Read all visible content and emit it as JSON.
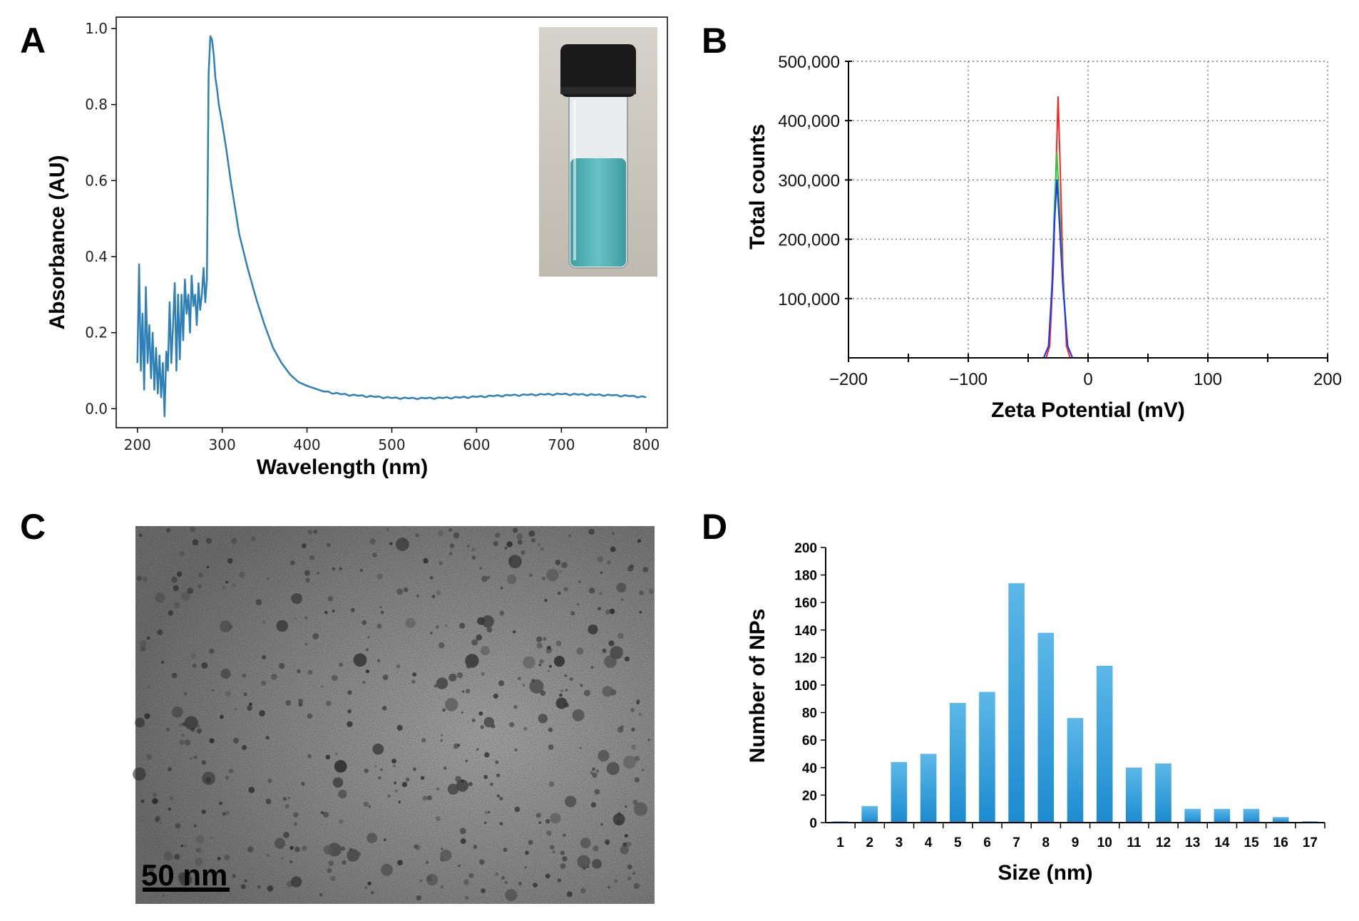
{
  "panels": {
    "A": "A",
    "B": "B",
    "C": "C",
    "D": "D"
  },
  "colors": {
    "absorbance_line": "#2f80b7",
    "zeta_red": "#ff2020",
    "zeta_green": "#22cc44",
    "zeta_blue": "#2030ff",
    "bar_fill": "#2d9ad8",
    "vial_liquid": "#54b3b5",
    "vial_cap": "#1a1a1a"
  },
  "chart_data": [
    {
      "id": "A",
      "type": "line",
      "title": "",
      "xlabel": "Wavelength (nm)",
      "ylabel": "Absorbance (AU)",
      "xlim": [
        175,
        825
      ],
      "ylim": [
        -0.05,
        1.03
      ],
      "xticks": [
        200,
        300,
        400,
        500,
        600,
        700,
        800
      ],
      "yticks": [
        0.0,
        0.2,
        0.4,
        0.6,
        0.8,
        1.0
      ],
      "xtick_labels": [
        "200",
        "300",
        "400",
        "500",
        "600",
        "700",
        "800"
      ],
      "ytick_labels": [
        "0.0",
        "0.2",
        "0.4",
        "0.6",
        "0.8",
        "1.0"
      ],
      "series": [
        {
          "name": "UV-Vis absorbance",
          "x": [
            200,
            202,
            204,
            206,
            208,
            210,
            212,
            214,
            216,
            218,
            220,
            222,
            224,
            226,
            228,
            230,
            232,
            234,
            236,
            238,
            240,
            242,
            244,
            246,
            248,
            250,
            252,
            254,
            256,
            258,
            260,
            262,
            264,
            266,
            268,
            270,
            272,
            274,
            276,
            278,
            280,
            282,
            284,
            286,
            288,
            290,
            292,
            294,
            296,
            300,
            305,
            310,
            315,
            320,
            330,
            340,
            350,
            360,
            370,
            380,
            390,
            400,
            420,
            440,
            460,
            480,
            500,
            520,
            540,
            560,
            580,
            600,
            620,
            640,
            660,
            680,
            700,
            720,
            740,
            760,
            780,
            800
          ],
          "y": [
            0.12,
            0.38,
            0.1,
            0.25,
            0.05,
            0.32,
            0.12,
            0.22,
            0.08,
            0.2,
            0.05,
            0.16,
            0.04,
            0.14,
            0.03,
            0.12,
            -0.02,
            0.15,
            0.1,
            0.28,
            0.12,
            0.22,
            0.33,
            0.1,
            0.3,
            0.13,
            0.3,
            0.18,
            0.34,
            0.25,
            0.3,
            0.2,
            0.35,
            0.27,
            0.3,
            0.22,
            0.33,
            0.26,
            0.3,
            0.37,
            0.28,
            0.34,
            0.88,
            0.98,
            0.97,
            0.93,
            0.87,
            0.84,
            0.8,
            0.75,
            0.68,
            0.6,
            0.53,
            0.46,
            0.37,
            0.29,
            0.22,
            0.16,
            0.12,
            0.09,
            0.07,
            0.06,
            0.045,
            0.038,
            0.034,
            0.031,
            0.028,
            0.027,
            0.027,
            0.028,
            0.029,
            0.031,
            0.033,
            0.035,
            0.036,
            0.037,
            0.038,
            0.037,
            0.036,
            0.035,
            0.033,
            0.03
          ]
        }
      ],
      "inset": "vial photograph"
    },
    {
      "id": "B",
      "type": "line",
      "title": "",
      "xlabel": "Zeta Potential (mV)",
      "ylabel": "Total counts",
      "xlim": [
        -200,
        200
      ],
      "ylim": [
        0,
        500000
      ],
      "xticks": [
        -200,
        -100,
        0,
        100,
        200
      ],
      "yticks": [
        100000,
        200000,
        300000,
        400000,
        500000
      ],
      "xtick_labels": [
        "−200",
        "−100",
        "0",
        "100",
        "200"
      ],
      "ytick_labels": [
        "100,000",
        "200,000",
        "300,000",
        "400,000",
        "500,000"
      ],
      "grid": true,
      "series": [
        {
          "name": "red",
          "x": [
            -200,
            -35,
            -32,
            -29,
            -27,
            -25,
            -23,
            -21,
            -18,
            -15,
            200
          ],
          "y": [
            0,
            0,
            20000,
            150000,
            300000,
            440000,
            300000,
            150000,
            20000,
            0,
            0
          ]
        },
        {
          "name": "green",
          "x": [
            -200,
            -37,
            -33,
            -30,
            -28,
            -26,
            -24,
            -21,
            -17,
            -13,
            200
          ],
          "y": [
            0,
            0,
            20000,
            130000,
            260000,
            345000,
            260000,
            130000,
            20000,
            0,
            0
          ]
        },
        {
          "name": "blue",
          "x": [
            -200,
            -37,
            -33,
            -30,
            -28,
            -26,
            -24,
            -21,
            -17,
            -13,
            200
          ],
          "y": [
            0,
            0,
            20000,
            120000,
            230000,
            300000,
            230000,
            120000,
            20000,
            0,
            0
          ]
        }
      ]
    },
    {
      "id": "D",
      "type": "bar",
      "title": "",
      "xlabel": "Size (nm)",
      "ylabel": "Number of NPs",
      "ylim": [
        0,
        200
      ],
      "yticks": [
        0,
        20,
        40,
        60,
        80,
        100,
        120,
        140,
        160,
        180,
        200
      ],
      "ytick_labels": [
        "0",
        "20",
        "40",
        "60",
        "80",
        "100",
        "120",
        "140",
        "160",
        "180",
        "200"
      ],
      "categories": [
        "1",
        "2",
        "3",
        "4",
        "5",
        "6",
        "7",
        "8",
        "9",
        "10",
        "11",
        "12",
        "13",
        "14",
        "15",
        "16",
        "17"
      ],
      "values": [
        1,
        12,
        44,
        50,
        87,
        95,
        174,
        138,
        76,
        114,
        40,
        43,
        10,
        10,
        10,
        4,
        1
      ]
    }
  ],
  "micrograph": {
    "scale_bar_label": "50 nm"
  }
}
